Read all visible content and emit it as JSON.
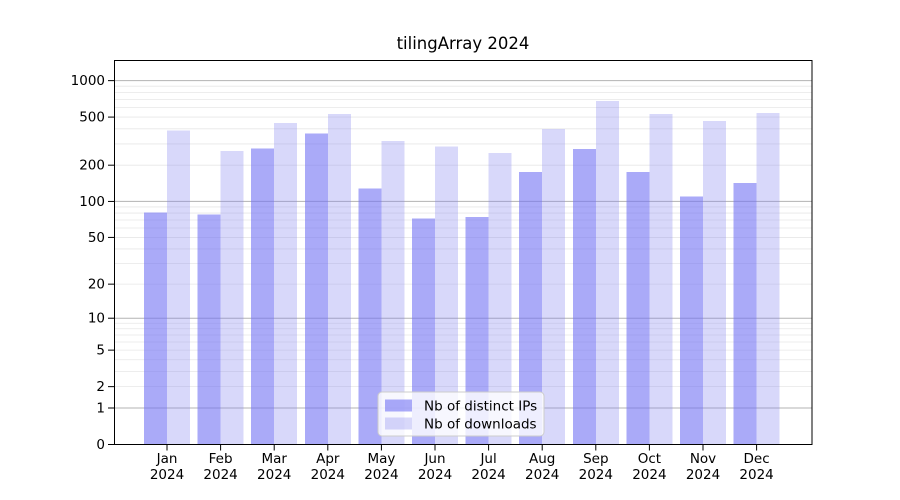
{
  "chart_data": {
    "type": "bar",
    "title": "tilingArray 2024",
    "categories": [
      "Jan 2024",
      "Feb 2024",
      "Mar 2024",
      "Apr 2024",
      "May 2024",
      "Jun 2024",
      "Jul 2024",
      "Aug 2024",
      "Sep 2024",
      "Oct 2024",
      "Nov 2024",
      "Dec 2024"
    ],
    "series": [
      {
        "name": "Nb of distinct IPs",
        "color": "#aaaaf8",
        "fill_rgba": "rgba(113,113,243,0.60)",
        "values": [
          81,
          78,
          275,
          366,
          128,
          72,
          74,
          176,
          272,
          176,
          110,
          142
        ]
      },
      {
        "name": "Nb of downloads",
        "color": "#d8d8f8",
        "fill_rgba": "rgba(125,125,238,0.30)",
        "values": [
          386,
          263,
          446,
          529,
          317,
          286,
          253,
          400,
          680,
          531,
          465,
          538
        ]
      }
    ],
    "scale": "log1p",
    "y_ticks": [
      1000,
      500,
      200,
      100,
      50,
      20,
      10,
      5,
      2,
      1,
      0
    ],
    "ylim": [
      0,
      1466
    ],
    "grid": true,
    "legend_position": "lower center",
    "colors": {
      "axis": "#000000",
      "major_grid": "#b3b3b3",
      "minor_grid": "#e7e7e7",
      "legend_border": "#cccccc"
    }
  }
}
